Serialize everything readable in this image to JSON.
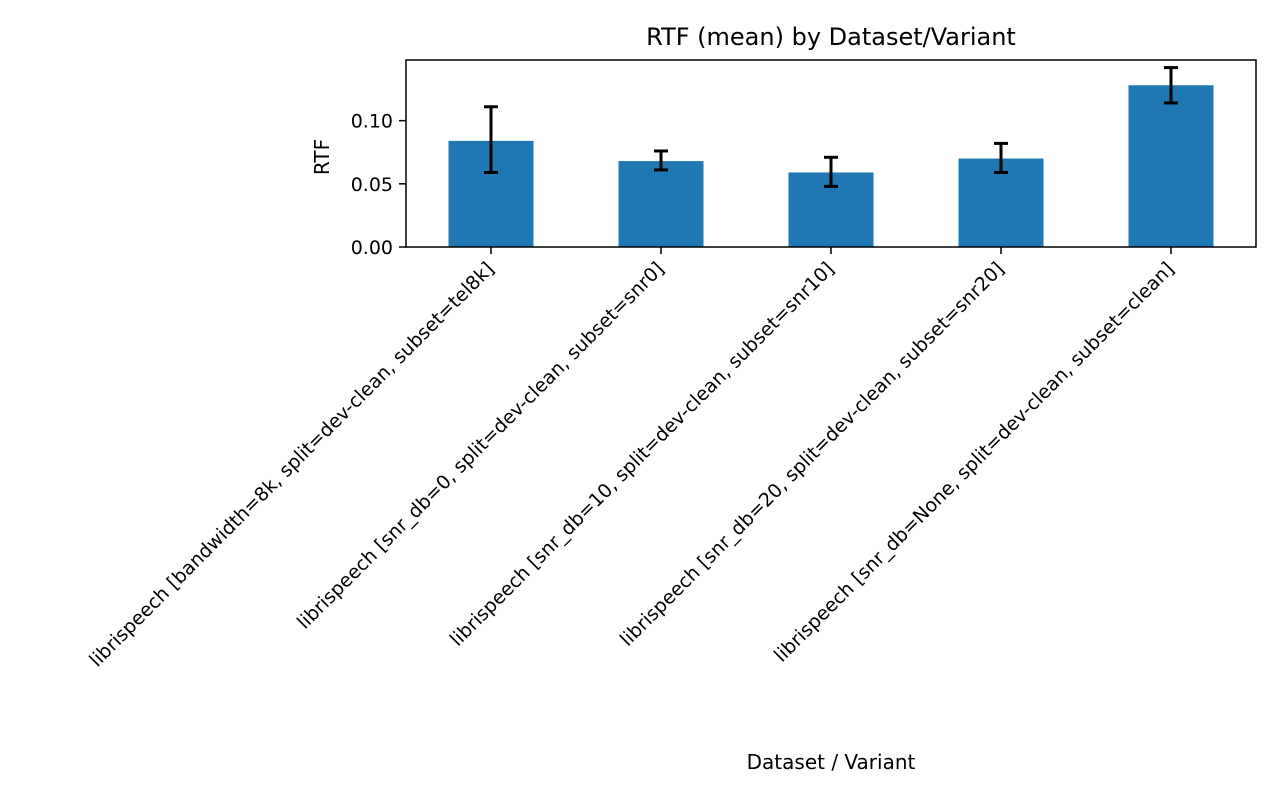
{
  "chart_data": {
    "type": "bar",
    "title": "RTF (mean) by Dataset/Variant",
    "xlabel": "Dataset / Variant",
    "ylabel": "RTF",
    "categories": [
      "librispeech [bandwidth=8k, split=dev-clean, subset=tel8k]",
      "librispeech [snr_db=0, split=dev-clean, subset=snr0]",
      "librispeech [snr_db=10, split=dev-clean, subset=snr10]",
      "librispeech [snr_db=20, split=dev-clean, subset=snr20]",
      "librispeech [snr_db=None, split=dev-clean, subset=clean]"
    ],
    "values": [
      0.084,
      0.068,
      0.059,
      0.07,
      0.128
    ],
    "error_low": [
      0.059,
      0.061,
      0.048,
      0.059,
      0.114
    ],
    "error_high": [
      0.111,
      0.076,
      0.071,
      0.082,
      0.142
    ],
    "ylim": [
      0,
      0.148
    ],
    "yticks": [
      0.0,
      0.05,
      0.1
    ],
    "ytick_labels": [
      "0.00",
      "0.05",
      "0.10"
    ],
    "grid": false,
    "legend": "none",
    "colors": {
      "bar": "#1f77b4",
      "error_bar": "#000000",
      "axis": "#000000"
    }
  }
}
